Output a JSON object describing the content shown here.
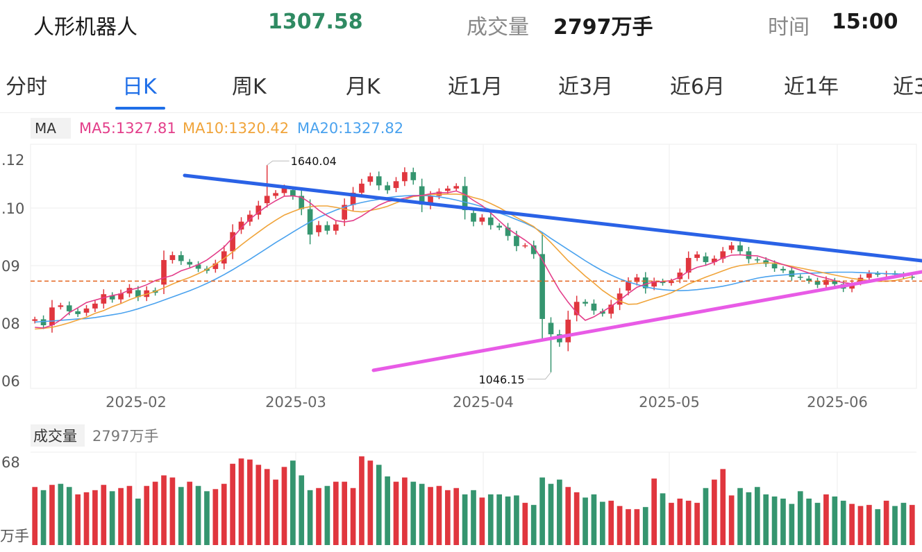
{
  "header": {
    "name": "人形机器人",
    "price": "1307.58",
    "volume_label": "成交量",
    "volume_value": "2797万手",
    "time_label": "时间",
    "time_value": "15:00"
  },
  "tabs": [
    {
      "label": "分时",
      "active": false
    },
    {
      "label": "日K",
      "active": true
    },
    {
      "label": "周K",
      "active": false
    },
    {
      "label": "月K",
      "active": false
    },
    {
      "label": "近1月",
      "active": false
    },
    {
      "label": "近3月",
      "active": false
    },
    {
      "label": "近6月",
      "active": false
    },
    {
      "label": "近1年",
      "active": false
    },
    {
      "label": "近3",
      "active": false
    }
  ],
  "colors": {
    "up": "#e0363e",
    "down": "#35956f",
    "ma5": "#e33e8a",
    "ma10": "#f0a43a",
    "ma20": "#4aa2ee",
    "blue_line": "#2a62e6",
    "pink_line": "#e85be6",
    "dashed": "#e3641d",
    "accent": "#1f6fe8"
  },
  "chart_data": [
    {
      "type": "candlestick",
      "legend": {
        "ma_label": "MA",
        "ma5": "MA5:1327.81",
        "ma10": "MA10:1320.42",
        "ma20": "MA20:1327.82"
      },
      "y_tick_labels": [
        ".12",
        ".10",
        "09",
        "08",
        "06"
      ],
      "x_tick_labels": [
        "2025-02",
        "2025-03",
        "2025-04",
        "2025-05",
        "2025-06"
      ],
      "y_range": [
        1000,
        1700
      ],
      "grid": true,
      "annotations": [
        {
          "label": "1640.04",
          "value": 1640.04,
          "kind": "high"
        },
        {
          "label": "1046.15",
          "value": 1046.15,
          "kind": "low"
        }
      ],
      "reference_price": 1307.58,
      "closes": [
        1198,
        1181,
        1232,
        1238,
        1221,
        1213,
        1229,
        1243,
        1270,
        1255,
        1272,
        1288,
        1262,
        1281,
        1274,
        1368,
        1382,
        1365,
        1355,
        1343,
        1337,
        1358,
        1393,
        1448,
        1478,
        1498,
        1524,
        1552,
        1560,
        1574,
        1552,
        1514,
        1441,
        1468,
        1452,
        1470,
        1526,
        1561,
        1587,
        1608,
        1582,
        1568,
        1594,
        1620,
        1597,
        1527,
        1552,
        1564,
        1573,
        1580,
        1511,
        1478,
        1490,
        1468,
        1461,
        1437,
        1408,
        1410,
        1385,
        1199,
        1155,
        1132,
        1197,
        1248,
        1243,
        1223,
        1214,
        1240,
        1272,
        1305,
        1318,
        1287,
        1307,
        1302,
        1307,
        1332,
        1374,
        1384,
        1362,
        1372,
        1393,
        1410,
        1393,
        1371,
        1367,
        1357,
        1344,
        1338,
        1320,
        1317,
        1308,
        1297,
        1311,
        1299,
        1286,
        1301,
        1317,
        1329,
        1326,
        1330,
        1326,
        1321,
        1318
      ],
      "ma5": [
        1175,
        1173,
        1181,
        1196,
        1217,
        1231,
        1246,
        1253,
        1260,
        1266,
        1271,
        1282,
        1288,
        1297,
        1309,
        1317,
        1324,
        1337,
        1345,
        1355,
        1368,
        1386,
        1405,
        1432,
        1460,
        1485,
        1505,
        1523,
        1538,
        1551,
        1552,
        1548,
        1532,
        1511,
        1495,
        1481,
        1477,
        1481,
        1494,
        1510,
        1525,
        1536,
        1540,
        1545,
        1552,
        1553,
        1558,
        1561,
        1561,
        1566,
        1556,
        1539,
        1524,
        1503,
        1480,
        1458,
        1441,
        1425,
        1406,
        1368,
        1324,
        1281,
        1247,
        1217,
        1195,
        1205,
        1220,
        1235,
        1253,
        1272,
        1290,
        1299,
        1305,
        1306,
        1309,
        1319,
        1336,
        1347,
        1353,
        1362,
        1374,
        1382,
        1383,
        1381,
        1380,
        1372,
        1363,
        1355,
        1347,
        1339,
        1331,
        1322,
        1316,
        1309,
        1303,
        1300,
        1302,
        1306,
        1312,
        1318,
        1323,
        1326,
        1328
      ],
      "ma10": [
        1170,
        1172,
        1175,
        1181,
        1188,
        1196,
        1204,
        1215,
        1223,
        1234,
        1243,
        1254,
        1263,
        1270,
        1278,
        1288,
        1299,
        1309,
        1318,
        1329,
        1341,
        1356,
        1372,
        1391,
        1411,
        1430,
        1448,
        1466,
        1482,
        1497,
        1507,
        1516,
        1521,
        1523,
        1523,
        1519,
        1514,
        1508,
        1506,
        1510,
        1515,
        1522,
        1532,
        1541,
        1550,
        1553,
        1556,
        1556,
        1557,
        1557,
        1555,
        1547,
        1541,
        1530,
        1518,
        1504,
        1490,
        1477,
        1464,
        1442,
        1418,
        1392,
        1366,
        1344,
        1322,
        1302,
        1281,
        1264,
        1250,
        1241,
        1242,
        1250,
        1258,
        1265,
        1274,
        1286,
        1299,
        1309,
        1319,
        1328,
        1337,
        1346,
        1352,
        1355,
        1358,
        1360,
        1359,
        1355,
        1350,
        1345,
        1340,
        1335,
        1330,
        1325,
        1320,
        1315,
        1312,
        1309,
        1307,
        1307,
        1309,
        1314,
        1320
      ],
      "ma20": [
        1190,
        1192,
        1193,
        1195,
        1197,
        1199,
        1200,
        1203,
        1207,
        1211,
        1215,
        1221,
        1228,
        1236,
        1244,
        1253,
        1262,
        1271,
        1280,
        1290,
        1301,
        1313,
        1326,
        1340,
        1355,
        1370,
        1386,
        1402,
        1418,
        1433,
        1448,
        1463,
        1477,
        1490,
        1501,
        1511,
        1520,
        1527,
        1533,
        1538,
        1542,
        1547,
        1550,
        1552,
        1553,
        1553,
        1552,
        1549,
        1545,
        1540,
        1534,
        1528,
        1521,
        1512,
        1503,
        1494,
        1484,
        1474,
        1462,
        1447,
        1430,
        1414,
        1398,
        1382,
        1366,
        1351,
        1337,
        1325,
        1314,
        1305,
        1298,
        1291,
        1286,
        1283,
        1281,
        1280,
        1281,
        1283,
        1286,
        1289,
        1293,
        1298,
        1304,
        1310,
        1316,
        1320,
        1323,
        1325,
        1327,
        1329,
        1330,
        1331,
        1332,
        1333,
        1333,
        1333,
        1332,
        1331,
        1330,
        1329,
        1328,
        1328,
        1328
      ]
    },
    {
      "type": "bar",
      "title": "成交量",
      "value_label": "2797万手",
      "y_tick_labels": [
        "68",
        "万手"
      ],
      "volumes": [
        55,
        52,
        57,
        58,
        55,
        48,
        50,
        52,
        57,
        51,
        54,
        56,
        44,
        56,
        60,
        66,
        64,
        55,
        60,
        56,
        51,
        53,
        58,
        77,
        82,
        81,
        76,
        72,
        62,
        74,
        80,
        66,
        52,
        54,
        56,
        60,
        60,
        54,
        84,
        80,
        76,
        65,
        60,
        64,
        60,
        58,
        55,
        56,
        52,
        54,
        48,
        52,
        45,
        48,
        48,
        46,
        47,
        40,
        38,
        64,
        58,
        62,
        55,
        50,
        45,
        48,
        41,
        42,
        37,
        34,
        34,
        36,
        63,
        49,
        40,
        44,
        42,
        40,
        54,
        62,
        72,
        47,
        54,
        50,
        55,
        48,
        46,
        44,
        39,
        51,
        44,
        40,
        48,
        46,
        42,
        39,
        37,
        38,
        34,
        42,
        37,
        40,
        38
      ],
      "up": [
        1,
        0,
        1,
        0,
        0,
        1,
        1,
        1,
        1,
        0,
        1,
        1,
        0,
        1,
        1,
        1,
        1,
        0,
        1,
        0,
        0,
        1,
        1,
        1,
        1,
        1,
        1,
        1,
        1,
        1,
        0,
        0,
        0,
        1,
        0,
        1,
        1,
        1,
        1,
        1,
        0,
        0,
        1,
        1,
        0,
        0,
        1,
        1,
        1,
        1,
        0,
        0,
        1,
        0,
        0,
        0,
        0,
        1,
        0,
        0,
        0,
        0,
        1,
        1,
        0,
        0,
        0,
        1,
        1,
        1,
        1,
        0,
        1,
        0,
        1,
        1,
        1,
        1,
        0,
        1,
        1,
        1,
        0,
        0,
        0,
        0,
        0,
        0,
        0,
        0,
        0,
        0,
        1,
        0,
        0,
        1,
        1,
        1,
        0,
        1,
        0,
        0,
        1
      ]
    }
  ]
}
